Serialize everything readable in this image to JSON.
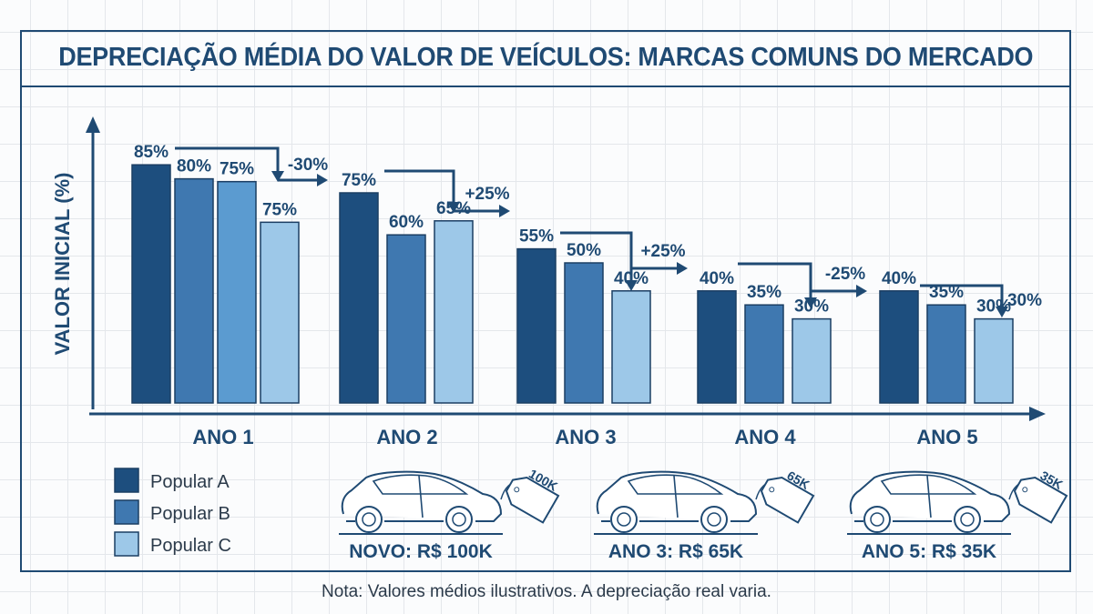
{
  "chart_data": {
    "type": "bar",
    "title": "DEPRECIAÇÃO MÉDIA DO VALOR DE VEÍCULOS: MARCAS COMUNS DO MERCADO",
    "ylabel": "VALOR INICIAL (%)",
    "xlabel": "",
    "ylim": [
      0,
      100
    ],
    "grid": true,
    "legend_placement": "bottom-left",
    "categories": [
      "ANO 1",
      "ANO 2",
      "ANO 3",
      "ANO 4",
      "ANO 5"
    ],
    "series": [
      {
        "name": "Popular A",
        "color": "#1d4e7e",
        "values": [
          85,
          75,
          55,
          40,
          40
        ]
      },
      {
        "name": "Popular B",
        "color": "#3f78b0",
        "values": [
          80,
          60,
          50,
          35,
          35
        ]
      },
      {
        "name": "Popular C",
        "color": "#9dc8e8",
        "values": [
          75,
          65,
          40,
          30,
          30
        ]
      }
    ],
    "extra_bars": [
      {
        "category": "ANO 1",
        "value": 75,
        "color": "#5b9bd0",
        "label": "75%"
      }
    ],
    "data_labels": [
      [
        "85%",
        "80%",
        "75%"
      ],
      [
        "75%",
        "60%",
        "65%"
      ],
      [
        "55%",
        "50%",
        "40%"
      ],
      [
        "40%",
        "35%",
        "30%"
      ],
      [
        "40%",
        "35%",
        "30%"
      ]
    ],
    "annotations": [
      "-30%",
      "+25%",
      "+25%",
      "-25%",
      "30%"
    ]
  },
  "cars": [
    {
      "tag": "100K",
      "caption": "NOVO: R$ 100K"
    },
    {
      "tag": "65K",
      "caption": "ANO 3: R$ 65K"
    },
    {
      "tag": "35K",
      "caption": "ANO 5: R$ 35K"
    }
  ],
  "note": "Nota: Valores médios ilustrativos. A depreciação real varia.",
  "colors": {
    "text": "#1f4a73",
    "grid": "#e4e7eb"
  }
}
